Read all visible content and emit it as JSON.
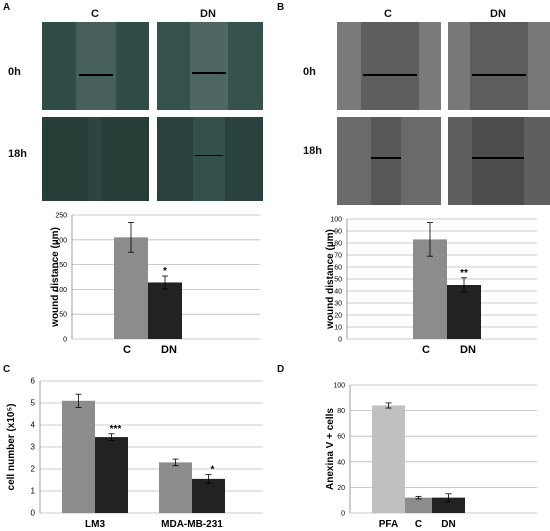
{
  "panels": {
    "A": {
      "letter": "A",
      "columns": [
        "C",
        "DN"
      ],
      "rows": [
        "0h",
        "18h"
      ]
    },
    "B": {
      "letter": "B",
      "columns": [
        "C",
        "DN"
      ],
      "rows": [
        "0h",
        "18h"
      ]
    },
    "C": {
      "letter": "C"
    },
    "D": {
      "letter": "D"
    }
  },
  "colors": {
    "control_bar": "#8c8c8c",
    "dn_bar": "#222222",
    "pfa_bar": "#c0c0c0",
    "grid": "#bbbbbb",
    "micrograph_A": "#2e4a44",
    "micrograph_B": "#6f6f6f"
  },
  "chart_data": [
    {
      "id": "A",
      "type": "bar",
      "categories": [
        "C",
        "DN"
      ],
      "values": [
        205,
        114
      ],
      "errors": [
        30,
        13
      ],
      "significance": [
        "",
        "*"
      ],
      "ylabel": "wound distance (µm)",
      "ylim": [
        0,
        250
      ],
      "yticks": [
        0,
        50,
        100,
        150,
        200,
        250
      ],
      "grid": true
    },
    {
      "id": "B",
      "type": "bar",
      "categories": [
        "C",
        "DN"
      ],
      "values": [
        83,
        45
      ],
      "errors": [
        14,
        6
      ],
      "significance": [
        "",
        "**"
      ],
      "ylabel": "wound distance (µm)",
      "ylim": [
        0,
        100
      ],
      "yticks": [
        0,
        10,
        20,
        30,
        40,
        50,
        60,
        70,
        80,
        90,
        100
      ],
      "grid": true
    },
    {
      "id": "C",
      "type": "bar",
      "categories": [
        "LM3",
        "MDA-MB-231"
      ],
      "series": [
        {
          "values": [
            5.1,
            2.3
          ],
          "errors": [
            0.3,
            0.15
          ]
        },
        {
          "values": [
            3.45,
            1.55
          ],
          "errors": [
            0.15,
            0.2
          ]
        }
      ],
      "significance": [
        "***",
        "*"
      ],
      "ylabel": "cell number (x10⁵)",
      "ylim": [
        0,
        6
      ],
      "yticks": [
        0,
        1,
        2,
        3,
        4,
        5,
        6
      ],
      "grid": true
    },
    {
      "id": "D",
      "type": "bar",
      "categories": [
        "PFA",
        "C",
        "DN"
      ],
      "values": [
        84,
        12,
        12
      ],
      "errors": [
        2,
        1,
        3
      ],
      "ylabel": "Anexina V + cells",
      "ylim": [
        0,
        100
      ],
      "yticks": [
        0,
        20,
        40,
        60,
        80,
        100
      ],
      "grid": true
    }
  ]
}
